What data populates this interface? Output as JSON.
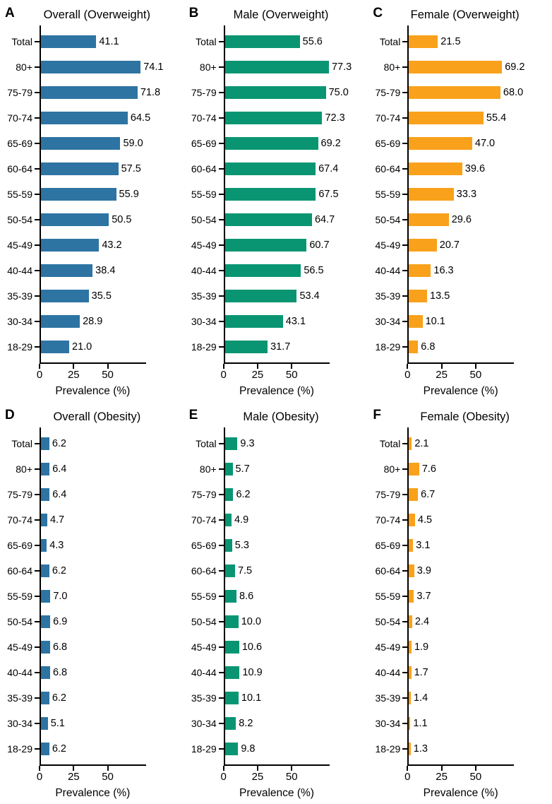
{
  "figure": {
    "background": "#ffffff",
    "text_color": "#000000",
    "axis_color": "#000000"
  },
  "chart_data": [
    {
      "id": "A",
      "title": "Overall (Overweight)",
      "type": "bar",
      "orientation": "horizontal",
      "color": "#2d74a3",
      "categories": [
        "Total",
        "80+",
        "75-79",
        "70-74",
        "65-69",
        "60-64",
        "55-59",
        "50-54",
        "45-49",
        "40-44",
        "35-39",
        "30-34",
        "18-29"
      ],
      "values": [
        41.1,
        74.1,
        71.8,
        64.5,
        59.0,
        57.5,
        55.9,
        50.5,
        43.2,
        38.4,
        35.5,
        28.9,
        21.0
      ],
      "xlabel": "Prevalence (%)",
      "xticks": [
        0,
        25,
        50
      ],
      "xlim": [
        0,
        78
      ],
      "grid": false,
      "legend": null
    },
    {
      "id": "B",
      "title": "Male (Overweight)",
      "type": "bar",
      "orientation": "horizontal",
      "color": "#0a9572",
      "categories": [
        "Total",
        "80+",
        "75-79",
        "70-74",
        "65-69",
        "60-64",
        "55-59",
        "50-54",
        "45-49",
        "40-44",
        "35-39",
        "30-34",
        "18-29"
      ],
      "values": [
        55.6,
        77.3,
        75.0,
        72.3,
        69.2,
        67.4,
        67.5,
        64.7,
        60.7,
        56.5,
        53.4,
        43.1,
        31.7
      ],
      "xlabel": "Prevalence (%)",
      "xticks": [
        0,
        25,
        50
      ],
      "xlim": [
        0,
        78
      ],
      "grid": false,
      "legend": null
    },
    {
      "id": "C",
      "title": "Female (Overweight)",
      "type": "bar",
      "orientation": "horizontal",
      "color": "#f9a11b",
      "categories": [
        "Total",
        "80+",
        "75-79",
        "70-74",
        "65-69",
        "60-64",
        "55-59",
        "50-54",
        "45-49",
        "40-44",
        "35-39",
        "30-34",
        "18-29"
      ],
      "values": [
        21.5,
        69.2,
        68.0,
        55.4,
        47.0,
        39.6,
        33.3,
        29.6,
        20.7,
        16.3,
        13.5,
        10.1,
        6.8
      ],
      "xlabel": "Prevalence (%)",
      "xticks": [
        0,
        25,
        50
      ],
      "xlim": [
        0,
        78
      ],
      "grid": false,
      "legend": null
    },
    {
      "id": "D",
      "title": "Overall (Obesity)",
      "type": "bar",
      "orientation": "horizontal",
      "color": "#2d74a3",
      "categories": [
        "Total",
        "80+",
        "75-79",
        "70-74",
        "65-69",
        "60-64",
        "55-59",
        "50-54",
        "45-49",
        "40-44",
        "35-39",
        "30-34",
        "18-29"
      ],
      "values": [
        6.2,
        6.4,
        6.4,
        4.7,
        4.3,
        6.2,
        7.0,
        6.9,
        6.8,
        6.8,
        6.2,
        5.1,
        6.2
      ],
      "xlabel": "Prevalence (%)",
      "xticks": [
        0,
        25,
        50
      ],
      "xlim": [
        0,
        78
      ],
      "grid": false,
      "legend": null
    },
    {
      "id": "E",
      "title": "Male (Obesity)",
      "type": "bar",
      "orientation": "horizontal",
      "color": "#0a9572",
      "categories": [
        "Total",
        "80+",
        "75-79",
        "70-74",
        "65-69",
        "60-64",
        "55-59",
        "50-54",
        "45-49",
        "40-44",
        "35-39",
        "30-34",
        "18-29"
      ],
      "values": [
        9.3,
        5.7,
        6.2,
        4.9,
        5.3,
        7.5,
        8.6,
        10.0,
        10.6,
        10.9,
        10.1,
        8.2,
        9.8
      ],
      "xlabel": "Prevalence (%)",
      "xticks": [
        0,
        25,
        50
      ],
      "xlim": [
        0,
        78
      ],
      "grid": false,
      "legend": null
    },
    {
      "id": "F",
      "title": "Female (Obesity)",
      "type": "bar",
      "orientation": "horizontal",
      "color": "#f9a11b",
      "categories": [
        "Total",
        "80+",
        "75-79",
        "70-74",
        "65-69",
        "60-64",
        "55-59",
        "50-54",
        "45-49",
        "40-44",
        "35-39",
        "30-34",
        "18-29"
      ],
      "values": [
        2.1,
        7.6,
        6.7,
        4.5,
        3.1,
        3.9,
        3.7,
        2.4,
        1.9,
        1.7,
        1.4,
        1.1,
        1.3
      ],
      "xlabel": "Prevalence (%)",
      "xticks": [
        0,
        25,
        50
      ],
      "xlim": [
        0,
        78
      ],
      "grid": false,
      "legend": null
    }
  ]
}
